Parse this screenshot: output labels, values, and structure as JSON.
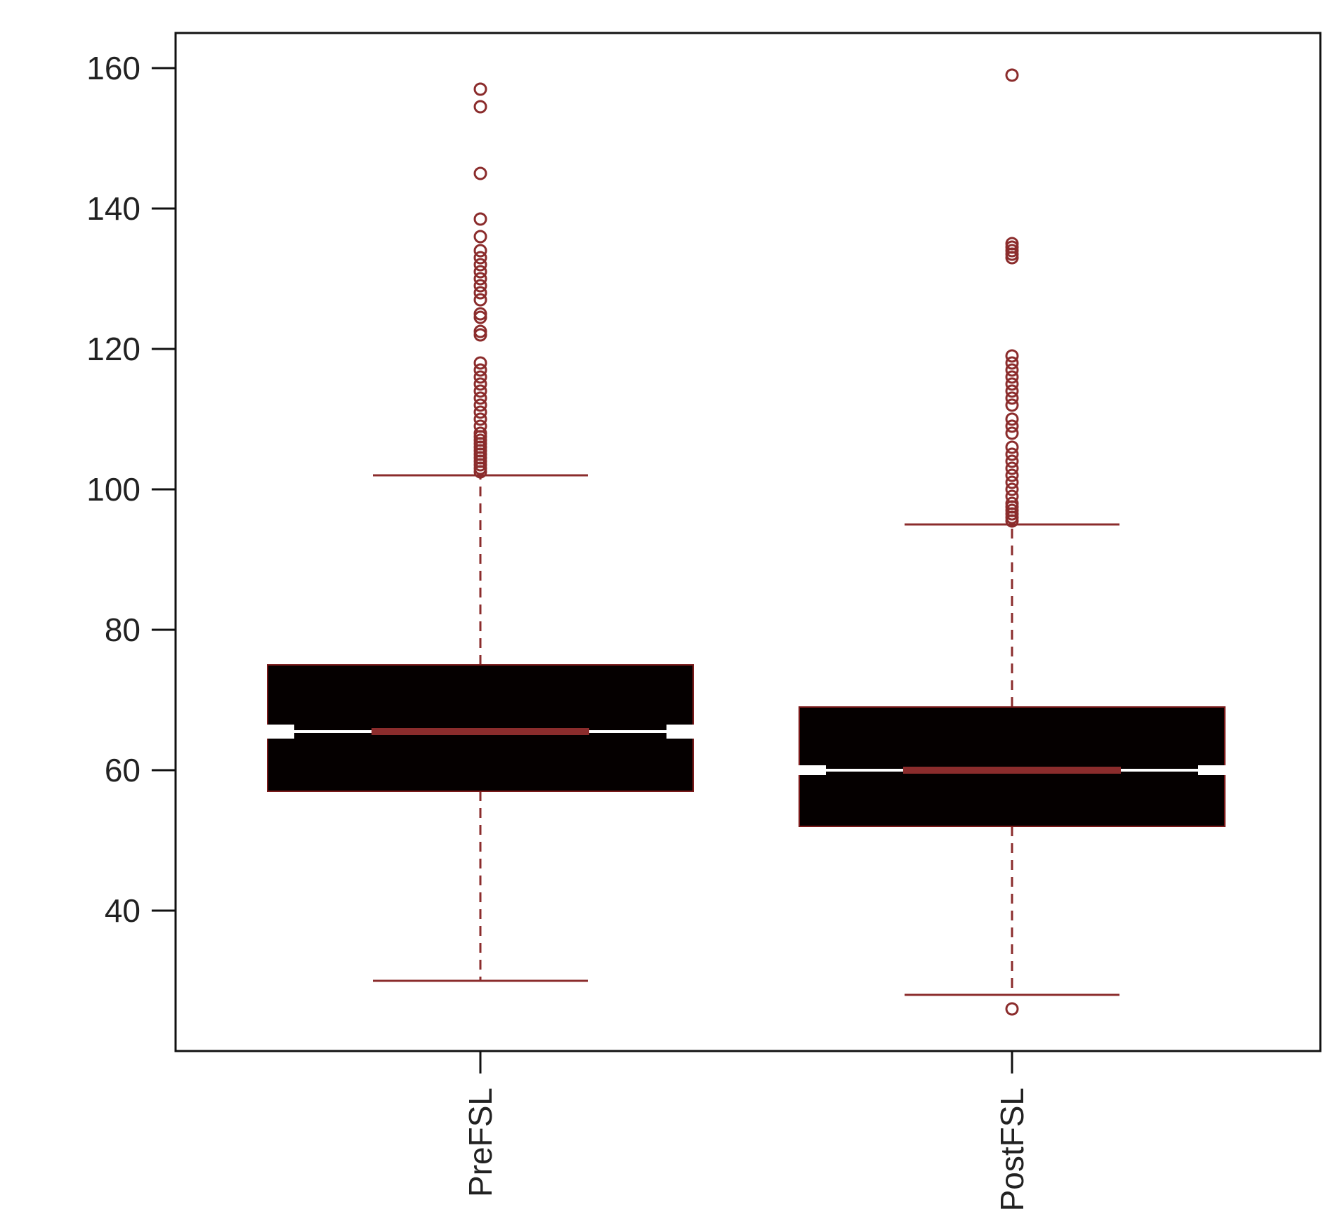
{
  "chart_data": {
    "type": "box",
    "title": "",
    "xlabel": "",
    "ylabel": "",
    "ylim": [
      20,
      165
    ],
    "yticks": [
      40,
      60,
      80,
      100,
      120,
      140,
      160
    ],
    "grid": false,
    "notched": true,
    "categories": [
      "PreFSL",
      "PostFSL"
    ],
    "boxes": [
      {
        "label": "PreFSL",
        "whisker_low": 30,
        "q1": 57,
        "median": 65.5,
        "q3": 75,
        "whisker_high": 102,
        "notch_low": 64.5,
        "notch_high": 66.5,
        "outliers": [
          102.5,
          103,
          103.5,
          104,
          104.5,
          105,
          105.5,
          106,
          106.5,
          107,
          107.5,
          108,
          109,
          110,
          111,
          112,
          113,
          114,
          115,
          116,
          117,
          118,
          122,
          122.5,
          124.5,
          125,
          127,
          128,
          129,
          130,
          131,
          132,
          133,
          134,
          136,
          138.5,
          145,
          154.5,
          157
        ]
      },
      {
        "label": "PostFSL",
        "whisker_low": 28,
        "q1": 52,
        "median": 60,
        "q3": 69,
        "whisker_high": 95,
        "notch_low": 59.3,
        "notch_high": 60.7,
        "outliers": [
          26,
          95.5,
          96,
          96.5,
          97,
          97.5,
          98,
          99,
          100,
          101,
          102,
          103,
          104,
          105,
          106,
          108,
          109,
          110,
          112,
          113,
          114,
          115,
          116,
          117,
          118,
          119,
          133,
          133.5,
          134,
          134.5,
          135,
          159
        ]
      }
    ]
  },
  "colors": {
    "box_fill": "#050000",
    "box_border": "#7a1a1a",
    "median": "#8b2c2c",
    "whisker": "#8b2c2c",
    "outlier": "#8b2c2c",
    "axis": "#111111"
  }
}
